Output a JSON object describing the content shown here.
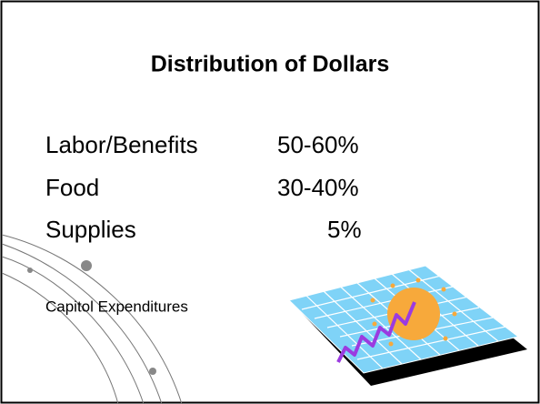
{
  "slide": {
    "title": "Distribution of Dollars",
    "items": [
      {
        "label": "Labor/Benefits",
        "value": "50-60%"
      },
      {
        "label": "Food",
        "value": "30-40%"
      },
      {
        "label": "Supplies",
        "value": "5%"
      }
    ],
    "note": "Capitol Expenditures"
  }
}
